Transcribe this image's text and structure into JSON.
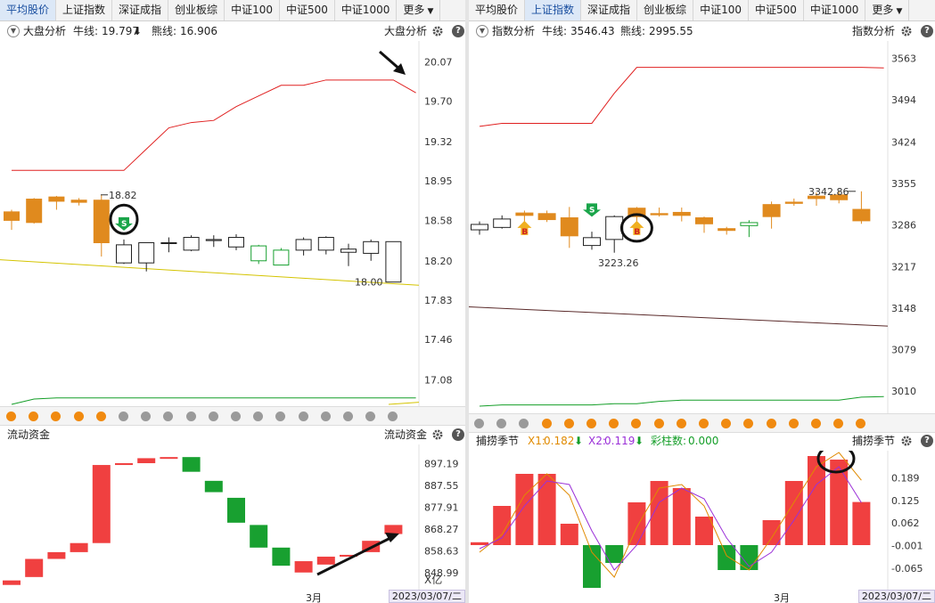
{
  "left": {
    "tabs": [
      {
        "label": "平均股价",
        "active": true
      },
      {
        "label": "上证指数",
        "active": false
      },
      {
        "label": "深证成指",
        "active": false
      },
      {
        "label": "创业板综",
        "active": false
      },
      {
        "label": "中证100",
        "active": false
      },
      {
        "label": "中证500",
        "active": false
      },
      {
        "label": "中证1000",
        "active": false
      },
      {
        "label": "更多",
        "active": false,
        "dropdown": true
      }
    ],
    "top": {
      "indicator": "大盘分析",
      "bull_label": "牛线:",
      "bull_value": "19.797",
      "bear_label": "熊线:",
      "bear_value": "16.906",
      "right_title": "大盘分析",
      "price_ticks": [
        "20.07",
        "19.70",
        "19.32",
        "18.95",
        "18.58",
        "18.20",
        "17.83",
        "17.46",
        "17.08"
      ],
      "high_label": "18.82",
      "low_label": "18.00",
      "signal_sell": "S"
    },
    "bottom": {
      "indicator": "流动资金",
      "right_title": "流动资金",
      "value_ticks": [
        "897.19",
        "887.55",
        "877.91",
        "868.27",
        "858.63",
        "848.99"
      ],
      "unit": "X亿",
      "month": "3月",
      "date": "2023/03/07/二"
    },
    "dots": [
      "orange",
      "orange",
      "orange",
      "orange",
      "orange",
      "gray",
      "gray",
      "gray",
      "gray",
      "gray",
      "gray",
      "gray",
      "gray",
      "gray",
      "gray",
      "gray",
      "gray",
      "gray"
    ]
  },
  "right": {
    "tabs": [
      {
        "label": "平均股价",
        "active": false
      },
      {
        "label": "上证指数",
        "active": true
      },
      {
        "label": "深证成指",
        "active": false
      },
      {
        "label": "创业板综",
        "active": false
      },
      {
        "label": "中证100",
        "active": false
      },
      {
        "label": "中证500",
        "active": false
      },
      {
        "label": "中证1000",
        "active": false
      },
      {
        "label": "更多",
        "active": false,
        "dropdown": true
      }
    ],
    "top": {
      "indicator": "指数分析",
      "bull_label": "牛线:",
      "bull_value": "3546.43",
      "bear_label": "熊线:",
      "bear_value": "2995.55",
      "right_title": "指数分析",
      "price_ticks": [
        "3563",
        "3494",
        "3424",
        "3355",
        "3286",
        "3217",
        "3148",
        "3079",
        "3010"
      ],
      "high_label": "3342.86",
      "low_label": "3223.26",
      "signal_buy": "B",
      "signal_sell": "S"
    },
    "bottom": {
      "indicator": "捕捞季节",
      "x1_label": "X1:",
      "x1_value": "0.182",
      "x2_label": "X2:",
      "x2_value": "0.119",
      "bar_label": "彩柱数:",
      "bar_value": "0.000",
      "right_title": "捕捞季节",
      "value_ticks": [
        "0.189",
        "0.125",
        "0.062",
        "-0.001",
        "-0.065"
      ],
      "month": "3月",
      "date": "2023/03/07/二"
    },
    "dots": [
      "gray",
      "gray",
      "gray",
      "orange",
      "orange",
      "orange",
      "orange",
      "orange",
      "orange",
      "orange",
      "orange",
      "orange",
      "orange",
      "orange",
      "orange",
      "orange",
      "orange",
      "orange"
    ]
  },
  "colors": {
    "up": "#e08a1e",
    "down_box": "#222222",
    "bull_line": "#e02020",
    "bear_line": "#149e28",
    "trend_line": "#d4c400",
    "red_bar": "#f04040",
    "green_bar": "#18a030",
    "orange_dot": "#f08a10",
    "gray_dot": "#9a9a9a"
  },
  "chart_data": [
    {
      "type": "candlestick",
      "title": "大盘分析",
      "ylim": [
        16.9,
        20.2
      ],
      "series": [
        {
          "name": "牛线",
          "values": [
            19.05,
            19.05,
            19.05,
            19.05,
            19.05,
            19.05,
            19.25,
            19.45,
            19.5,
            19.52,
            19.65,
            19.75,
            19.85,
            19.85,
            19.9,
            19.9,
            19.9,
            19.9,
            19.78
          ]
        },
        {
          "name": "熊线",
          "values": [
            16.85,
            16.9,
            16.91,
            16.91,
            16.91,
            16.91,
            16.91,
            16.91,
            16.91,
            16.91,
            16.91,
            16.91,
            16.91,
            16.91,
            16.91,
            16.91,
            16.91,
            16.91,
            16.91
          ]
        }
      ],
      "candles": [
        {
          "o": 18.58,
          "c": 18.66,
          "h": 18.68,
          "l": 18.49,
          "fill": "up"
        },
        {
          "o": 18.56,
          "c": 18.78,
          "h": 18.79,
          "l": 18.55,
          "fill": "up"
        },
        {
          "o": 18.76,
          "c": 18.8,
          "h": 18.81,
          "l": 18.68,
          "fill": "up"
        },
        {
          "o": 18.75,
          "c": 18.77,
          "h": 18.79,
          "l": 18.72,
          "fill": "up"
        },
        {
          "o": 18.77,
          "c": 18.37,
          "h": 18.82,
          "l": 18.24,
          "fill": "up"
        },
        {
          "o": 18.35,
          "c": 18.18,
          "h": 18.4,
          "l": 18.17,
          "fill": "hollow"
        },
        {
          "o": 18.37,
          "c": 18.18,
          "h": 18.37,
          "l": 18.1,
          "fill": "hollow"
        },
        {
          "o": 18.37,
          "c": 18.37,
          "h": 18.42,
          "l": 18.28,
          "fill": "hollow"
        },
        {
          "o": 18.3,
          "c": 18.42,
          "h": 18.44,
          "l": 18.29,
          "fill": "hollow"
        },
        {
          "o": 18.39,
          "c": 18.4,
          "h": 18.44,
          "l": 18.33,
          "fill": "hollow"
        },
        {
          "o": 18.33,
          "c": 18.42,
          "h": 18.45,
          "l": 18.3,
          "fill": "hollow"
        },
        {
          "o": 18.34,
          "c": 18.2,
          "h": 18.35,
          "l": 18.17,
          "fill": "green"
        },
        {
          "o": 18.3,
          "c": 18.16,
          "h": 18.32,
          "l": 18.16,
          "fill": "green"
        },
        {
          "o": 18.3,
          "c": 18.4,
          "h": 18.42,
          "l": 18.25,
          "fill": "hollow"
        },
        {
          "o": 18.3,
          "c": 18.42,
          "h": 18.43,
          "l": 18.26,
          "fill": "hollow"
        },
        {
          "o": 18.28,
          "c": 18.31,
          "h": 18.36,
          "l": 18.15,
          "fill": "hollow"
        },
        {
          "o": 18.27,
          "c": 18.38,
          "h": 18.4,
          "l": 18.2,
          "fill": "hollow"
        },
        {
          "o": 18.0,
          "c": 18.38,
          "h": 18.38,
          "l": 18.0,
          "fill": "hollow"
        }
      ]
    },
    {
      "type": "bar",
      "title": "流动资金",
      "ylim": [
        843,
        904
      ],
      "values": [
        [
          843.5,
          845.5
        ],
        [
          847,
          855
        ],
        [
          855,
          858
        ],
        [
          858,
          862
        ],
        [
          862,
          896.5
        ],
        [
          896.5,
          897.3
        ],
        [
          897.3,
          899.5
        ],
        [
          899.5,
          900
        ],
        [
          893.5,
          900
        ],
        [
          884.5,
          889.5
        ],
        [
          871,
          882
        ],
        [
          860,
          870
        ],
        [
          852,
          860
        ],
        [
          849,
          854
        ],
        [
          852.5,
          856
        ],
        [
          856,
          856.8
        ],
        [
          858,
          863
        ],
        [
          866,
          870
        ]
      ],
      "colors": [
        "red",
        "red",
        "red",
        "red",
        "red",
        "red",
        "red",
        "red",
        "green",
        "green",
        "green",
        "green",
        "green",
        "red",
        "red",
        "red",
        "red",
        "red"
      ]
    },
    {
      "type": "candlestick",
      "title": "指数分析",
      "ylim": [
        2985,
        3580
      ],
      "series": [
        {
          "name": "牛线",
          "values": [
            3450,
            3455,
            3455,
            3455,
            3455,
            3455,
            3505,
            3548,
            3548,
            3548,
            3548,
            3548,
            3548,
            3548,
            3548,
            3548,
            3548,
            3548,
            3547
          ]
        },
        {
          "name": "熊线",
          "values": [
            2985,
            2987,
            2987,
            2987,
            2987,
            2987,
            2989,
            2989,
            2993,
            2995,
            2995,
            2995,
            2995,
            2995,
            2995,
            2995,
            2995,
            3000,
            3001
          ]
        }
      ],
      "candles": [
        {
          "o": 3278,
          "c": 3287,
          "h": 3292,
          "l": 3270,
          "fill": "hollow"
        },
        {
          "o": 3282,
          "c": 3296,
          "h": 3302,
          "l": 3280,
          "fill": "hollow"
        },
        {
          "o": 3302,
          "c": 3306,
          "h": 3310,
          "l": 3290,
          "fill": "up"
        },
        {
          "o": 3295,
          "c": 3305,
          "h": 3310,
          "l": 3291,
          "fill": "up"
        },
        {
          "o": 3298,
          "c": 3268,
          "h": 3316,
          "l": 3248,
          "fill": "up"
        },
        {
          "o": 3252,
          "c": 3265,
          "h": 3275,
          "l": 3245,
          "fill": "hollow"
        },
        {
          "o": 3262,
          "c": 3300,
          "h": 3302,
          "l": 3240,
          "fill": "hollow"
        },
        {
          "o": 3314,
          "c": 3300,
          "h": 3316,
          "l": 3283,
          "fill": "up"
        },
        {
          "o": 3305,
          "c": 3303,
          "h": 3315,
          "l": 3300,
          "fill": "up"
        },
        {
          "o": 3302,
          "c": 3307,
          "h": 3315,
          "l": 3292,
          "fill": "up"
        },
        {
          "o": 3298,
          "c": 3288,
          "h": 3300,
          "l": 3273,
          "fill": "up"
        },
        {
          "o": 3277,
          "c": 3280,
          "h": 3283,
          "l": 3270,
          "fill": "up"
        },
        {
          "o": 3290,
          "c": 3285,
          "h": 3294,
          "l": 3266,
          "fill": "green"
        },
        {
          "o": 3300,
          "c": 3320,
          "h": 3325,
          "l": 3280,
          "fill": "up"
        },
        {
          "o": 3322,
          "c": 3324,
          "h": 3330,
          "l": 3318,
          "fill": "up"
        },
        {
          "o": 3330,
          "c": 3334,
          "h": 3340,
          "l": 3318,
          "fill": "up"
        },
        {
          "o": 3328,
          "c": 3336,
          "h": 3342,
          "l": 3322,
          "fill": "up"
        },
        {
          "o": 3312,
          "c": 3293,
          "h": 3342,
          "l": 3288,
          "fill": "up"
        }
      ]
    },
    {
      "type": "bar",
      "title": "捕捞季节",
      "ylim": [
        -0.12,
        0.26
      ],
      "values": [
        0.008,
        0.11,
        0.2,
        0.2,
        0.06,
        -0.12,
        -0.05,
        0.12,
        0.18,
        0.16,
        0.08,
        -0.07,
        -0.07,
        0.07,
        0.18,
        0.25,
        0.24,
        0.121
      ],
      "x1": [
        -0.02,
        0.03,
        0.14,
        0.2,
        0.14,
        -0.02,
        -0.09,
        0.05,
        0.16,
        0.17,
        0.11,
        -0.03,
        -0.07,
        0.02,
        0.12,
        0.22,
        0.26,
        0.182
      ],
      "x2": [
        -0.01,
        0.02,
        0.11,
        0.18,
        0.17,
        0.04,
        -0.07,
        0.0,
        0.12,
        0.16,
        0.13,
        0.02,
        -0.06,
        -0.02,
        0.07,
        0.17,
        0.22,
        0.119
      ]
    }
  ]
}
